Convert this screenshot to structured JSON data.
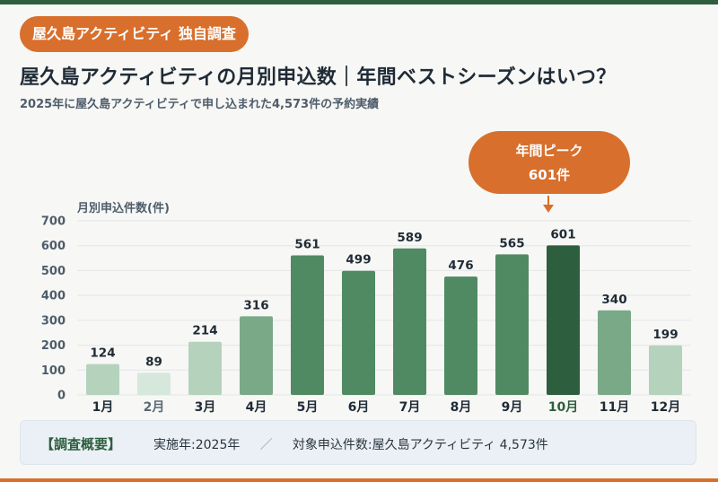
{
  "badge": "屋久島アクティビティ 独自調査",
  "title": "屋久島アクティビティの月別申込数｜年間ベストシーズンはいつ？",
  "subtitle": "2025年に屋久島アクティビティで申し込まれた4,573件の予約実績",
  "callout": {
    "line1": "年間ピーク",
    "line2": "601件"
  },
  "footer": {
    "tag": "【調査概要】",
    "item1": "実施年:2025年",
    "separator": "／",
    "item2": "対象申込件数:屋久島アクティビティ 4,573件"
  },
  "colors": {
    "accent": "#d86f2c",
    "peak": "#2d5e3d",
    "high": "#4f8a63",
    "mid": "#7aa988",
    "low": "#b5d2bd",
    "lowest": "#d6e8db"
  },
  "chart_data": {
    "type": "bar",
    "ylabel": "月別申込件数(件)",
    "ylim": [
      0,
      700
    ],
    "yticks": [
      0,
      100,
      200,
      300,
      400,
      500,
      600,
      700
    ],
    "grid": true,
    "categories": [
      "1月",
      "2月",
      "3月",
      "4月",
      "5月",
      "6月",
      "7月",
      "8月",
      "9月",
      "10月",
      "11月",
      "12月"
    ],
    "values": [
      124,
      89,
      214,
      316,
      561,
      499,
      589,
      476,
      565,
      601,
      340,
      199
    ],
    "highlight_index": 9
  }
}
